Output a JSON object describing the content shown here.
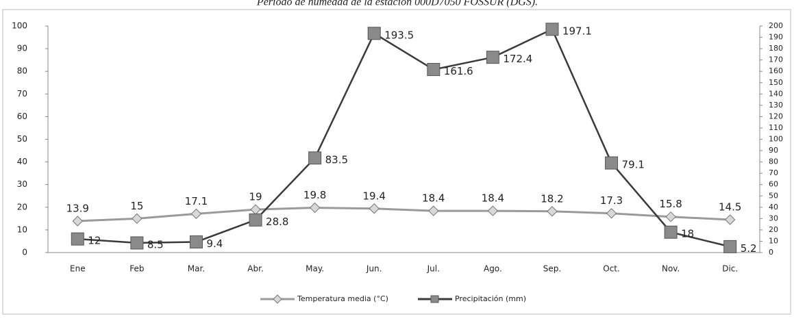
{
  "chart_data": {
    "type": "line",
    "title": "Periodo de humedad de la estación 000D7050 FOSSUR (DGS).",
    "categories": [
      "Ene",
      "Feb",
      "Mar.",
      "Abr.",
      "May.",
      "Jun.",
      "Jul.",
      "Ago.",
      "Sep.",
      "Oct.",
      "Nov.",
      "Dic."
    ],
    "series": [
      {
        "name": "Temperatura media (°C)",
        "color": "#9a9a9a",
        "values": [
          13.9,
          15,
          17.1,
          19,
          19.8,
          19.4,
          18.4,
          18.4,
          18.2,
          17.3,
          15.8,
          14.5
        ]
      },
      {
        "name": "Precipitación (mm)",
        "color": "#3a3a3a",
        "axis": "y2",
        "values": [
          12,
          8.5,
          9.4,
          28.8,
          83.5,
          193.5,
          161.6,
          172.4,
          197.1,
          79.1,
          18,
          5.2
        ]
      }
    ],
    "ylim": [
      0,
      100
    ],
    "yticks": [
      0,
      10,
      20,
      30,
      40,
      50,
      60,
      70,
      80,
      90,
      100
    ],
    "y2lim": [
      0,
      200
    ],
    "y2ticks": [
      0,
      10,
      20,
      30,
      40,
      50,
      60,
      70,
      80,
      90,
      100,
      110,
      120,
      130,
      140,
      150,
      160,
      170,
      180,
      190,
      200
    ]
  }
}
